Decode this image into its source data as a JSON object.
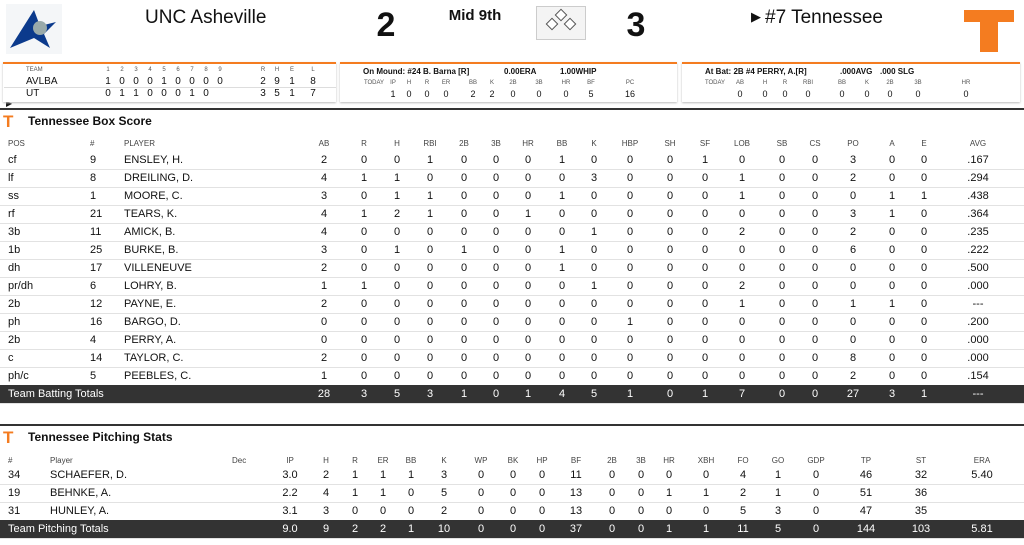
{
  "header": {
    "away": "UNC Asheville",
    "away_score": 2,
    "status": "Mid 9th",
    "home_score": 3,
    "home": "#7 Tennessee"
  },
  "linescore": {
    "headers": [
      "TEAM",
      "1",
      "2",
      "3",
      "4",
      "5",
      "6",
      "7",
      "8",
      "9",
      "R",
      "H",
      "E",
      "L"
    ],
    "rows": [
      {
        "team": "AVLBA",
        "innings": [
          1,
          0,
          0,
          0,
          1,
          0,
          0,
          0,
          0
        ],
        "totals": [
          2,
          9,
          1,
          8
        ]
      },
      {
        "team": "UT",
        "innings": [
          0,
          1,
          1,
          0,
          0,
          0,
          1,
          0
        ],
        "totals": [
          3,
          5,
          1,
          7
        ]
      }
    ]
  },
  "pitcher": {
    "label": "On Mound: #24 B. Barna [R]",
    "era": "0.00ERA",
    "whip": "1.00WHIP",
    "headers": [
      "TODAY",
      "IP",
      "H",
      "R",
      "ER",
      "BB",
      "K",
      "2B",
      "3B",
      "HR",
      "BF",
      "PC"
    ],
    "values": [
      1,
      0,
      0,
      0,
      2,
      2,
      0,
      0,
      0,
      5,
      16
    ]
  },
  "batter": {
    "label": "At Bat: 2B #4 PERRY, A.[R]",
    "avg": ".000AVG",
    "slg": ".000 SLG",
    "headers": [
      "TODAY",
      "AB",
      "H",
      "R",
      "RBI",
      "BB",
      "K",
      "2B",
      "3B",
      "HR"
    ],
    "values": [
      0,
      0,
      0,
      0,
      0,
      0,
      0,
      0,
      0
    ]
  },
  "box": {
    "title": "Tennessee Box Score",
    "headers": [
      "POS",
      "#",
      "PLAYER",
      "AB",
      "R",
      "H",
      "RBI",
      "2B",
      "3B",
      "HR",
      "BB",
      "K",
      "HBP",
      "SH",
      "SF",
      "LOB",
      "SB",
      "CS",
      "PO",
      "A",
      "E",
      "AVG"
    ],
    "rows": [
      [
        "cf",
        9,
        "ENSLEY, H.",
        2,
        0,
        0,
        1,
        0,
        0,
        0,
        1,
        0,
        0,
        0,
        1,
        0,
        0,
        0,
        3,
        0,
        0,
        ".167"
      ],
      [
        "lf",
        8,
        "DREILING, D.",
        4,
        1,
        1,
        0,
        0,
        0,
        0,
        0,
        3,
        0,
        0,
        0,
        1,
        0,
        0,
        2,
        0,
        0,
        ".294"
      ],
      [
        "ss",
        1,
        "MOORE, C.",
        3,
        0,
        1,
        1,
        0,
        0,
        0,
        1,
        0,
        0,
        0,
        0,
        1,
        0,
        0,
        0,
        1,
        1,
        ".438"
      ],
      [
        "rf",
        21,
        "TEARS, K.",
        4,
        1,
        2,
        1,
        0,
        0,
        1,
        0,
        0,
        0,
        0,
        0,
        0,
        0,
        0,
        3,
        1,
        0,
        ".364"
      ],
      [
        "3b",
        11,
        "AMICK, B.",
        4,
        0,
        0,
        0,
        0,
        0,
        0,
        0,
        1,
        0,
        0,
        0,
        2,
        0,
        0,
        2,
        0,
        0,
        ".235"
      ],
      [
        "1b",
        25,
        "BURKE, B.",
        3,
        0,
        1,
        0,
        1,
        0,
        0,
        1,
        0,
        0,
        0,
        0,
        0,
        0,
        0,
        6,
        0,
        0,
        ".222"
      ],
      [
        "dh",
        17,
        "VILLENEUVE",
        2,
        0,
        0,
        0,
        0,
        0,
        0,
        1,
        0,
        0,
        0,
        0,
        0,
        0,
        0,
        0,
        0,
        0,
        ".500"
      ],
      [
        "pr/dh",
        6,
        "LOHRY, B.",
        1,
        1,
        0,
        0,
        0,
        0,
        0,
        0,
        1,
        0,
        0,
        0,
        2,
        0,
        0,
        0,
        0,
        0,
        ".000"
      ],
      [
        "2b",
        12,
        "PAYNE, E.",
        2,
        0,
        0,
        0,
        0,
        0,
        0,
        0,
        0,
        0,
        0,
        0,
        1,
        0,
        0,
        1,
        1,
        0,
        "---"
      ],
      [
        "ph",
        16,
        "BARGO, D.",
        0,
        0,
        0,
        0,
        0,
        0,
        0,
        0,
        0,
        1,
        0,
        0,
        0,
        0,
        0,
        0,
        0,
        0,
        ".200"
      ],
      [
        "2b",
        4,
        "PERRY, A.",
        0,
        0,
        0,
        0,
        0,
        0,
        0,
        0,
        0,
        0,
        0,
        0,
        0,
        0,
        0,
        0,
        0,
        0,
        ".000"
      ],
      [
        "c",
        14,
        "TAYLOR, C.",
        2,
        0,
        0,
        0,
        0,
        0,
        0,
        0,
        0,
        0,
        0,
        0,
        0,
        0,
        0,
        8,
        0,
        0,
        ".000"
      ],
      [
        "ph/c",
        5,
        "PEEBLES, C.",
        1,
        0,
        0,
        0,
        0,
        0,
        0,
        0,
        0,
        0,
        0,
        0,
        0,
        0,
        0,
        2,
        0,
        0,
        ".154"
      ]
    ],
    "totals": {
      "label": "Team Batting Totals",
      "values": [
        28,
        3,
        5,
        3,
        1,
        0,
        1,
        4,
        5,
        1,
        0,
        1,
        7,
        0,
        0,
        27,
        3,
        1,
        "---"
      ]
    }
  },
  "pitching": {
    "title": "Tennessee Pitching Stats",
    "headers": [
      "#",
      "Player",
      "Dec",
      "IP",
      "H",
      "R",
      "ER",
      "BB",
      "K",
      "WP",
      "BK",
      "HP",
      "BF",
      "2B",
      "3B",
      "HR",
      "XBH",
      "FO",
      "GO",
      "GDP",
      "TP",
      "ST",
      "ERA"
    ],
    "rows": [
      {
        "num": 34,
        "player": "SCHAEFER, D.",
        "stats": [
          "3.0",
          2,
          1,
          1,
          1,
          3,
          0,
          0,
          0,
          11,
          0,
          0,
          0,
          0,
          4,
          1,
          0,
          46,
          32
        ],
        "era": "5.40"
      },
      {
        "num": 19,
        "player": "BEHNKE, A.",
        "stats": [
          "2.2",
          4,
          1,
          1,
          0,
          5,
          0,
          0,
          0,
          13,
          0,
          0,
          1,
          1,
          2,
          1,
          0,
          51,
          36
        ]
      },
      {
        "num": 31,
        "player": "HUNLEY, A.",
        "stats": [
          "3.1",
          3,
          0,
          0,
          0,
          2,
          0,
          0,
          0,
          13,
          0,
          0,
          0,
          0,
          5,
          3,
          0,
          47,
          35
        ]
      }
    ],
    "totals": {
      "label": "Team Pitching Totals",
      "stats": [
        "9.0",
        9,
        2,
        2,
        1,
        10,
        0,
        0,
        0,
        37,
        0,
        0,
        1,
        1,
        11,
        5,
        0,
        144,
        103
      ],
      "era": "5.81"
    }
  }
}
